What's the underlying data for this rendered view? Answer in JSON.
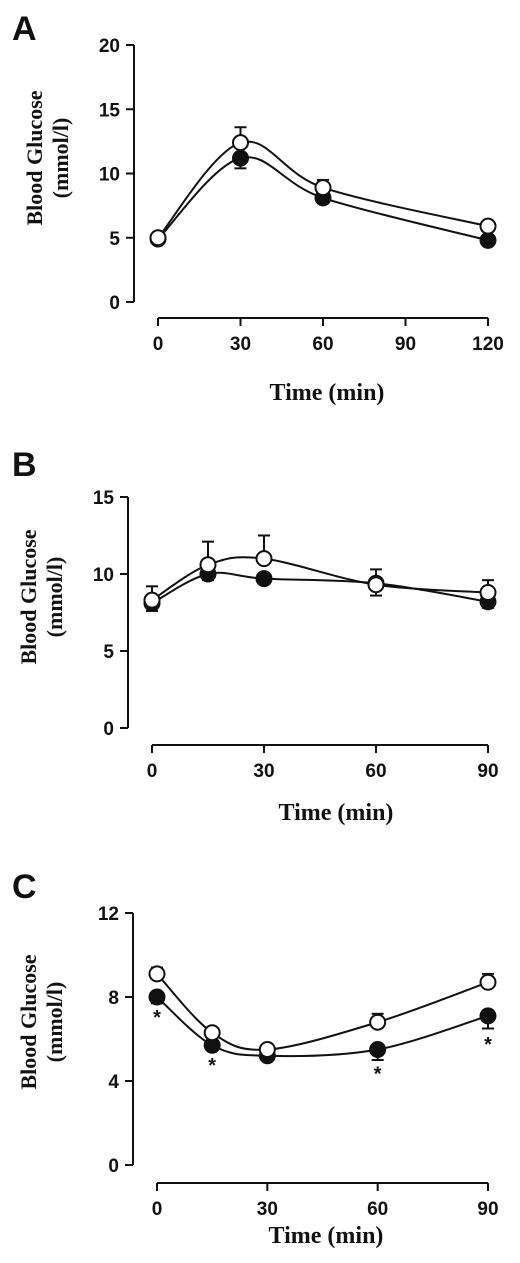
{
  "chart_data": [
    {
      "type": "line",
      "panel": "A",
      "xlabel": "Time (min)",
      "ylabel_line1": "Blood Glucose",
      "ylabel_line2": "(mmol/l)",
      "xlim": [
        0,
        120
      ],
      "ylim": [
        0,
        20
      ],
      "xticks": [
        0,
        30,
        60,
        90,
        120
      ],
      "yticks": [
        0,
        5,
        10,
        15,
        20
      ],
      "x": [
        0,
        30,
        60,
        120
      ],
      "series": [
        {
          "marker": "open",
          "values": [
            5.0,
            12.4,
            8.9,
            5.9
          ],
          "errors": [
            0.3,
            1.2,
            0.6,
            0.4
          ]
        },
        {
          "marker": "filled",
          "values": [
            4.9,
            11.2,
            8.1,
            4.8
          ],
          "errors": [
            0.3,
            0.8,
            0.4,
            0.3
          ]
        }
      ],
      "annotations": [],
      "grid": false
    },
    {
      "type": "line",
      "panel": "B",
      "xlabel": "Time (min)",
      "ylabel_line1": "Blood Glucose",
      "ylabel_line2": "(mmol/l)",
      "xlim": [
        0,
        90
      ],
      "ylim": [
        0,
        15
      ],
      "xticks": [
        0,
        30,
        60,
        90
      ],
      "yticks": [
        0,
        5,
        10,
        15
      ],
      "x": [
        0,
        15,
        30,
        60,
        90
      ],
      "series": [
        {
          "marker": "open",
          "values": [
            8.3,
            10.6,
            11.0,
            9.3,
            8.8
          ],
          "errors": [
            0.9,
            1.5,
            1.5,
            1.0,
            0.8
          ]
        },
        {
          "marker": "filled",
          "values": [
            8.1,
            10.0,
            9.7,
            9.4,
            8.2
          ],
          "errors": [
            0.5,
            0.4,
            0.3,
            0.8,
            0.4
          ]
        }
      ],
      "annotations": [],
      "grid": false
    },
    {
      "type": "line",
      "panel": "C",
      "xlabel": "Time (min)",
      "ylabel_line1": "Blood Glucose",
      "ylabel_line2": "(mmol/l)",
      "xlim": [
        0,
        90
      ],
      "ylim": [
        0,
        12
      ],
      "xticks": [
        0,
        30,
        60,
        90
      ],
      "yticks": [
        0,
        4,
        8,
        12
      ],
      "x": [
        0,
        15,
        30,
        60,
        90
      ],
      "series": [
        {
          "marker": "open",
          "values": [
            9.1,
            6.3,
            5.5,
            6.8,
            8.7
          ],
          "errors": [
            0.3,
            0.2,
            0.2,
            0.4,
            0.4
          ]
        },
        {
          "marker": "filled",
          "values": [
            8.0,
            5.7,
            5.2,
            5.5,
            7.1
          ],
          "errors": [
            0.3,
            0.2,
            0.2,
            0.5,
            0.6
          ]
        }
      ],
      "annotations": [
        {
          "text": "*",
          "x": 0,
          "y": 7.1
        },
        {
          "text": "*",
          "x": 15,
          "y": 4.8
        },
        {
          "text": "*",
          "x": 60,
          "y": 4.4
        },
        {
          "text": "*",
          "x": 90,
          "y": 5.8
        }
      ],
      "grid": false
    }
  ]
}
